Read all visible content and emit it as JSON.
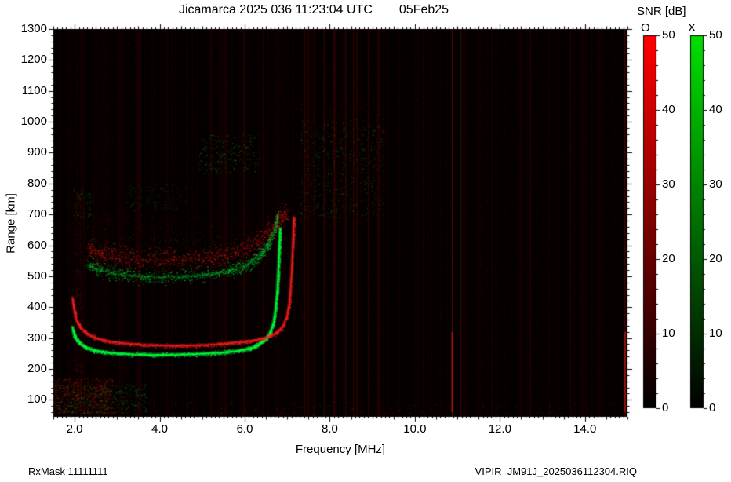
{
  "header": {
    "title": "Jicamarca 2025 036 11:23:04 UTC",
    "date": "05Feb25",
    "colorbar_heading": "SNR [dB]"
  },
  "axes": {
    "x_label": "Frequency [MHz]",
    "y_label": "Range [km]"
  },
  "footer": {
    "rx_mask": "RxMask 11111111",
    "file_id": "VIPIR  JM91J_2025036112304.RIQ"
  },
  "chart_data": {
    "type": "heatmap",
    "title": "Jicamarca 2025 036 11:23:04 UTC 05Feb25",
    "xlabel": "Frequency [MHz]",
    "ylabel": "Range [km]",
    "xlim": [
      1.5,
      15.0
    ],
    "ylim": [
      45,
      1300
    ],
    "grid": false,
    "xticks": [
      2,
      4,
      6,
      8,
      10,
      12,
      14
    ],
    "xtick_labels": [
      "2.0",
      "4.0",
      "6.0",
      "8.0",
      "10.0",
      "12.0",
      "14.0"
    ],
    "yticks": [
      1300,
      1200,
      1100,
      1000,
      900,
      800,
      700,
      600,
      500,
      400,
      300,
      200,
      100
    ],
    "ytick_labels": [
      "1300",
      "1200",
      "1100",
      "1000",
      "900",
      "800",
      "700",
      "600",
      "500",
      "400",
      "300",
      "200",
      "100"
    ],
    "colorbars": [
      {
        "label": "O",
        "mode": "ordinary",
        "color": "#ff0000",
        "range": [
          0,
          50
        ],
        "ticks": [
          0,
          10,
          20,
          30,
          40,
          50
        ],
        "units": "dB"
      },
      {
        "label": "X",
        "mode": "extraordinary",
        "color": "#00e000",
        "range": [
          0,
          50
        ],
        "ticks": [
          0,
          10,
          20,
          30,
          40,
          50
        ],
        "units": "dB"
      }
    ],
    "series": [
      {
        "name": "X-mode 1st hop trace",
        "color": "#00ff3c",
        "line_alpha": 0.85,
        "line_width": 2,
        "scatter": 1500,
        "spread": 3,
        "points": [
          [
            1.95,
            335
          ],
          [
            2.0,
            305
          ],
          [
            2.1,
            285
          ],
          [
            2.25,
            270
          ],
          [
            2.45,
            260
          ],
          [
            2.7,
            254
          ],
          [
            3.0,
            250
          ],
          [
            3.4,
            247
          ],
          [
            3.8,
            246
          ],
          [
            4.2,
            246
          ],
          [
            4.6,
            247
          ],
          [
            5.0,
            249
          ],
          [
            5.4,
            252
          ],
          [
            5.7,
            256
          ],
          [
            6.0,
            262
          ],
          [
            6.2,
            270
          ],
          [
            6.35,
            281
          ],
          [
            6.5,
            297
          ],
          [
            6.6,
            318
          ],
          [
            6.68,
            350
          ],
          [
            6.73,
            395
          ],
          [
            6.77,
            460
          ],
          [
            6.8,
            540
          ],
          [
            6.82,
            615
          ],
          [
            6.83,
            655
          ]
        ]
      },
      {
        "name": "O-mode 1st hop trace",
        "color": "#ff1f1f",
        "line_alpha": 0.8,
        "line_width": 1.8,
        "scatter": 1100,
        "spread": 3,
        "points": [
          [
            1.95,
            430
          ],
          [
            2.0,
            385
          ],
          [
            2.05,
            355
          ],
          [
            2.15,
            332
          ],
          [
            2.3,
            313
          ],
          [
            2.5,
            299
          ],
          [
            2.8,
            289
          ],
          [
            3.2,
            282
          ],
          [
            3.6,
            278
          ],
          [
            4.0,
            276
          ],
          [
            4.4,
            275
          ],
          [
            4.8,
            276
          ],
          [
            5.2,
            278
          ],
          [
            5.6,
            282
          ],
          [
            6.0,
            288
          ],
          [
            6.3,
            294
          ],
          [
            6.55,
            303
          ],
          [
            6.75,
            317
          ],
          [
            6.9,
            338
          ],
          [
            7.0,
            372
          ],
          [
            7.06,
            425
          ],
          [
            7.1,
            505
          ],
          [
            7.13,
            595
          ],
          [
            7.15,
            660
          ],
          [
            7.16,
            690
          ]
        ]
      },
      {
        "name": "X-mode 2nd hop trace",
        "color": "#00d435",
        "line_alpha": 0.22,
        "line_width": 2,
        "scatter": 900,
        "spread": 9,
        "points": [
          [
            2.3,
            535
          ],
          [
            2.6,
            520
          ],
          [
            3.0,
            508
          ],
          [
            3.5,
            500
          ],
          [
            4.0,
            497
          ],
          [
            4.5,
            498
          ],
          [
            5.0,
            503
          ],
          [
            5.4,
            511
          ],
          [
            5.8,
            523
          ],
          [
            6.1,
            541
          ],
          [
            6.35,
            566
          ],
          [
            6.55,
            602
          ],
          [
            6.7,
            652
          ],
          [
            6.78,
            700
          ]
        ]
      },
      {
        "name": "O-mode 2nd hop trace",
        "color": "#e01616",
        "line_alpha": 0.1,
        "line_width": 2,
        "scatter": 800,
        "spread": 14,
        "points": [
          [
            2.3,
            595
          ],
          [
            2.6,
            575
          ],
          [
            3.0,
            562
          ],
          [
            3.5,
            554
          ],
          [
            4.0,
            551
          ],
          [
            4.5,
            553
          ],
          [
            5.0,
            558
          ],
          [
            5.4,
            566
          ],
          [
            5.8,
            580
          ],
          [
            6.2,
            602
          ],
          [
            6.5,
            637
          ],
          [
            6.8,
            682
          ],
          [
            7.0,
            712
          ]
        ]
      }
    ],
    "rfi_lines": [
      {
        "f": 3.05,
        "a": 0.08
      },
      {
        "f": 4.12,
        "a": 0.07
      },
      {
        "f": 5.2,
        "a": 0.12
      },
      {
        "f": 5.55,
        "a": 0.09
      },
      {
        "f": 5.97,
        "a": 0.11
      },
      {
        "f": 6.42,
        "a": 0.08
      },
      {
        "f": 7.4,
        "a": 0.13
      },
      {
        "f": 7.63,
        "a": 0.16
      },
      {
        "f": 7.86,
        "a": 0.13
      },
      {
        "f": 8.1,
        "a": 0.18
      },
      {
        "f": 8.36,
        "a": 0.14
      },
      {
        "f": 8.63,
        "a": 0.16
      },
      {
        "f": 8.9,
        "a": 0.13
      },
      {
        "f": 9.15,
        "a": 0.11
      },
      {
        "f": 9.62,
        "a": 0.07
      },
      {
        "f": 10.2,
        "a": 0.06
      },
      {
        "f": 10.87,
        "a": 0.28,
        "base": true
      },
      {
        "f": 11.07,
        "a": 0.2
      },
      {
        "f": 11.55,
        "a": 0.06
      },
      {
        "f": 12.48,
        "a": 0.09
      },
      {
        "f": 13.15,
        "a": 0.06
      },
      {
        "f": 13.65,
        "a": 0.07
      },
      {
        "f": 14.32,
        "a": 0.06
      },
      {
        "f": 14.93,
        "a": 0.25,
        "base": true
      }
    ],
    "noise_patches": [
      {
        "name": "background-red",
        "color": "#c81400",
        "f": [
          1.5,
          15.0
        ],
        "km": [
          45,
          1300
        ],
        "n": 6000,
        "a": 0.17
      },
      {
        "name": "background-green",
        "color": "#00b400",
        "f": [
          1.5,
          15.0
        ],
        "km": [
          45,
          1300
        ],
        "n": 900,
        "a": 0.13
      },
      {
        "name": "bottom-edge-red",
        "color": "#d21900",
        "f": [
          1.5,
          15.0
        ],
        "km": [
          45,
          95
        ],
        "n": 420,
        "a": 0.3
      },
      {
        "name": "bottom-edge-green",
        "color": "#00c832",
        "f": [
          1.5,
          15.0
        ],
        "km": [
          45,
          95
        ],
        "n": 160,
        "a": 0.3
      },
      {
        "name": "e-region-red",
        "color": "#e61e0a",
        "f": [
          1.5,
          2.9
        ],
        "km": [
          55,
          170
        ],
        "n": 800,
        "a": 0.5
      },
      {
        "name": "e-region-green",
        "color": "#00d232",
        "f": [
          1.55,
          3.7
        ],
        "km": [
          55,
          150
        ],
        "n": 450,
        "a": 0.45
      },
      {
        "name": "left-column-red",
        "color": "#d21400",
        "f": [
          1.95,
          2.15
        ],
        "km": [
          110,
          770
        ],
        "n": 500,
        "a": 0.32
      },
      {
        "name": "second-hop-red-cloud",
        "color": "#c81414",
        "f": [
          2.2,
          6.6
        ],
        "km": [
          525,
          705
        ],
        "n": 900,
        "a": 0.26
      },
      {
        "name": "second-hop-green-cloud",
        "color": "#00aa28",
        "f": [
          2.3,
          6.3
        ],
        "km": [
          495,
          630
        ],
        "n": 380,
        "a": 0.3
      },
      {
        "name": "mid-high-green",
        "color": "#00cc33",
        "f": [
          4.9,
          6.35
        ],
        "km": [
          830,
          960
        ],
        "n": 260,
        "a": 0.5
      },
      {
        "name": "high-band-green",
        "color": "#00cc33",
        "f": [
          7.3,
          9.25
        ],
        "km": [
          690,
          1010
        ],
        "n": 560,
        "a": 0.45
      },
      {
        "name": "high-band-red",
        "color": "#cc1111",
        "f": [
          7.2,
          9.4
        ],
        "km": [
          640,
          1060
        ],
        "n": 520,
        "a": 0.3
      },
      {
        "name": "green-760",
        "color": "#00bb33",
        "f": [
          3.2,
          4.7
        ],
        "km": [
          715,
          800
        ],
        "n": 130,
        "a": 0.42
      },
      {
        "name": "green-740-left",
        "color": "#00bb33",
        "f": [
          1.95,
          2.4
        ],
        "km": [
          690,
          790
        ],
        "n": 80,
        "a": 0.45
      }
    ]
  }
}
